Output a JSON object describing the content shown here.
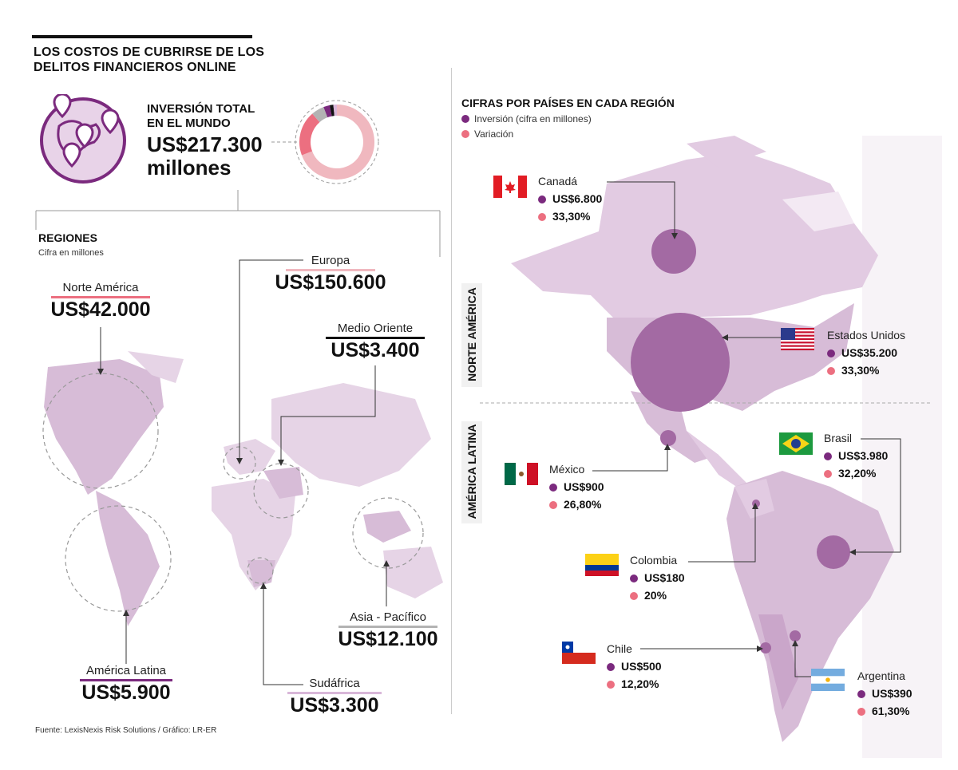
{
  "header": {
    "title_line1": "LOS COSTOS DE CUBRIRSE DE LOS",
    "title_line2": "DELITOS FINANCIEROS ONLINE"
  },
  "total": {
    "label_line1": "INVERSIÓN TOTAL",
    "label_line2": "EN EL MUNDO",
    "value_line1": "US$217.300",
    "value_line2": "millones",
    "donut_shares": [
      150600,
      42000,
      12100,
      5900,
      3400,
      3300
    ],
    "donut_colors": [
      "#f0b8bf",
      "#ec6f80",
      "#b3b3b3",
      "#7b2a7e",
      "#111111",
      "#d9b7d9"
    ]
  },
  "regions": {
    "title": "REGIONES",
    "subtitle": "Cifra en millones",
    "items": [
      {
        "name": "Norte América",
        "value": "US$42.000",
        "color": "#ec6f80"
      },
      {
        "name": "Europa",
        "value": "US$150.600",
        "color": "#f0b8bf"
      },
      {
        "name": "Medio Oriente",
        "value": "US$3.400",
        "color": "#111111"
      },
      {
        "name": "América Latina",
        "value": "US$5.900",
        "color": "#7b2a7e"
      },
      {
        "name": "Sudáfrica",
        "value": "US$3.300",
        "color": "#d9b7d9"
      },
      {
        "name": "Asia - Pacífico",
        "value": "US$12.100",
        "color": "#b3b3b3"
      }
    ]
  },
  "countries": {
    "title": "CIFRAS POR PAÍSES EN CADA REGIÓN",
    "legend_investment": "Inversión (cifra en millones)",
    "legend_variation": "Variación",
    "band_north": "NORTE AMÉRICA",
    "band_latam": "AMÉRICA LATINA",
    "investment_color": "#7b2a7e",
    "variation_color": "#ec6f80",
    "items": [
      {
        "name": "Canadá",
        "investment": "US$6.800",
        "variation": "33,30%"
      },
      {
        "name": "Estados Unidos",
        "investment": "US$35.200",
        "variation": "33,30%"
      },
      {
        "name": "México",
        "investment": "US$900",
        "variation": "26,80%"
      },
      {
        "name": "Brasil",
        "investment": "US$3.980",
        "variation": "32,20%"
      },
      {
        "name": "Colombia",
        "investment": "US$180",
        "variation": "20%"
      },
      {
        "name": "Chile",
        "investment": "US$500",
        "variation": "12,20%"
      },
      {
        "name": "Argentina",
        "investment": "US$390",
        "variation": "61,30%"
      }
    ]
  },
  "source": "Fuente: LexisNexis Risk Solutions / Gráfico: LR-ER"
}
